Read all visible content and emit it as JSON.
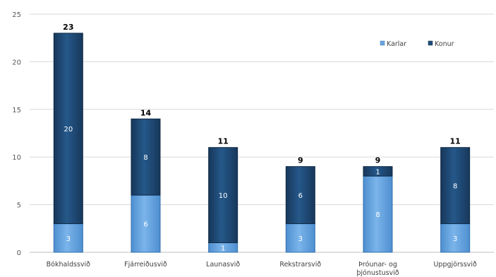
{
  "chart_data": {
    "type": "bar",
    "stacked": true,
    "categories": [
      "Bókhaldssvið",
      "Fjárreiðusvið",
      "Launasvið",
      "Rekstrarsvið",
      "Þróunar- og þjónustusvið",
      "Uppgjörssvið"
    ],
    "category_lines": [
      [
        "Bókhaldssvið"
      ],
      [
        "Fjárreiðusvið"
      ],
      [
        "Launasvið"
      ],
      [
        "Rekstrarsvið"
      ],
      [
        "Þróunar- og",
        "þjónustusvið"
      ],
      [
        "Uppgjörssvið"
      ]
    ],
    "series": [
      {
        "name": "Karlar",
        "values": [
          3,
          6,
          1,
          3,
          8,
          3
        ],
        "color": "#6aa6e0"
      },
      {
        "name": "Konur",
        "values": [
          20,
          8,
          10,
          6,
          1,
          8
        ],
        "color": "#1f4e79"
      }
    ],
    "totals": [
      23,
      14,
      11,
      9,
      9,
      11
    ],
    "ylim": [
      0,
      25
    ],
    "yticks": [
      0,
      5,
      10,
      15,
      20,
      25
    ],
    "grid": true,
    "legend_position": "top-right",
    "title": "",
    "xlabel": "",
    "ylabel": ""
  }
}
